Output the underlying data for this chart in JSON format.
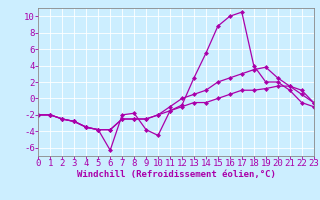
{
  "title": "",
  "xlabel": "Windchill (Refroidissement éolien,°C)",
  "ylabel": "",
  "background_color": "#cceeff",
  "line_color": "#aa00aa",
  "grid_color": "#ffffff",
  "x": [
    0,
    1,
    2,
    3,
    4,
    5,
    6,
    7,
    8,
    9,
    10,
    11,
    12,
    13,
    14,
    15,
    16,
    17,
    18,
    19,
    20,
    21,
    22,
    23
  ],
  "line1": [
    -2.0,
    -2.0,
    -2.5,
    -2.8,
    -3.5,
    -3.8,
    -6.3,
    -2.0,
    -1.8,
    -3.8,
    -4.5,
    -1.5,
    -0.8,
    2.5,
    5.5,
    8.8,
    10.0,
    10.5,
    4.0,
    2.0,
    2.0,
    1.0,
    -0.5,
    -1.0
  ],
  "line2": [
    -2.0,
    -2.0,
    -2.5,
    -2.8,
    -3.5,
    -3.8,
    -3.8,
    -2.5,
    -2.5,
    -2.5,
    -2.0,
    -1.0,
    0.0,
    0.5,
    1.0,
    2.0,
    2.5,
    3.0,
    3.5,
    3.8,
    2.5,
    1.5,
    0.5,
    -0.5
  ],
  "line3": [
    -2.0,
    -2.0,
    -2.5,
    -2.8,
    -3.5,
    -3.8,
    -3.8,
    -2.5,
    -2.5,
    -2.5,
    -2.0,
    -1.5,
    -1.0,
    -0.5,
    -0.5,
    0.0,
    0.5,
    1.0,
    1.0,
    1.2,
    1.5,
    1.5,
    1.0,
    -0.5
  ],
  "ylim": [
    -7,
    11
  ],
  "xlim": [
    0,
    23
  ],
  "yticks": [
    -6,
    -4,
    -2,
    0,
    2,
    4,
    6,
    8,
    10
  ],
  "xticks": [
    0,
    1,
    2,
    3,
    4,
    5,
    6,
    7,
    8,
    9,
    10,
    11,
    12,
    13,
    14,
    15,
    16,
    17,
    18,
    19,
    20,
    21,
    22,
    23
  ],
  "fontsize_label": 6.5,
  "fontsize_tick": 6.5,
  "markersize": 2.0,
  "linewidth": 0.9
}
